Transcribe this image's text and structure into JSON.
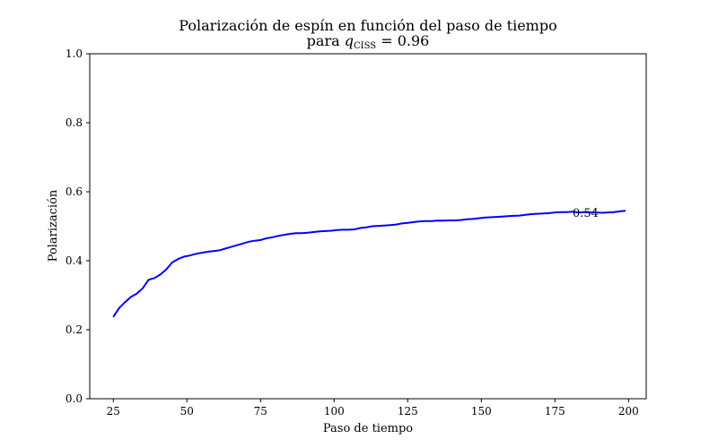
{
  "chart_data": {
    "type": "line",
    "title": "Polarización de espín en función del paso de tiempo",
    "subtitle_prefix": "para ",
    "subtitle_var": "q",
    "subtitle_sub": "CISS",
    "subtitle_suffix": " = 0.96",
    "xlabel": "Paso de tiempo",
    "ylabel": "Polarización",
    "xlim": [
      17,
      206
    ],
    "ylim": [
      0.0,
      1.0
    ],
    "xticks": [
      25,
      50,
      75,
      100,
      125,
      150,
      175,
      200
    ],
    "yticks": [
      0.0,
      0.2,
      0.4,
      0.6,
      0.8,
      1.0
    ],
    "ytick_labels": [
      "0.0",
      "0.2",
      "0.4",
      "0.6",
      "0.8",
      "1.0"
    ],
    "grid": false,
    "legend": "none",
    "annotation": {
      "text": "0.54",
      "x": 181,
      "y": 0.54
    },
    "series": [
      {
        "color": "#0000ff",
        "x": [
          25,
          27,
          29,
          31,
          33,
          35,
          37,
          39,
          41,
          43,
          45,
          47,
          49,
          51,
          53,
          55,
          57,
          59,
          61,
          63,
          65,
          67,
          69,
          71,
          73,
          75,
          77,
          79,
          81,
          83,
          85,
          87,
          89,
          91,
          93,
          95,
          97,
          99,
          101,
          103,
          105,
          107,
          109,
          111,
          113,
          115,
          117,
          119,
          121,
          123,
          125,
          127,
          129,
          131,
          133,
          135,
          137,
          139,
          141,
          143,
          145,
          147,
          149,
          151,
          153,
          155,
          157,
          159,
          161,
          163,
          165,
          167,
          169,
          171,
          173,
          175,
          177,
          179,
          181,
          183,
          185,
          187,
          189,
          191,
          193,
          195,
          197,
          199
        ],
        "y": [
          0.237,
          0.263,
          0.28,
          0.295,
          0.305,
          0.32,
          0.345,
          0.35,
          0.36,
          0.375,
          0.395,
          0.405,
          0.412,
          0.415,
          0.42,
          0.423,
          0.426,
          0.428,
          0.43,
          0.435,
          0.44,
          0.445,
          0.45,
          0.455,
          0.458,
          0.46,
          0.465,
          0.468,
          0.472,
          0.475,
          0.478,
          0.48,
          0.48,
          0.481,
          0.483,
          0.485,
          0.486,
          0.487,
          0.489,
          0.49,
          0.49,
          0.491,
          0.495,
          0.497,
          0.5,
          0.501,
          0.502,
          0.503,
          0.505,
          0.508,
          0.51,
          0.512,
          0.514,
          0.515,
          0.515,
          0.516,
          0.516,
          0.517,
          0.517,
          0.518,
          0.52,
          0.521,
          0.523,
          0.525,
          0.526,
          0.527,
          0.528,
          0.529,
          0.53,
          0.531,
          0.533,
          0.535,
          0.536,
          0.537,
          0.538,
          0.54,
          0.541,
          0.541,
          0.542,
          0.54,
          0.541,
          0.54,
          0.54,
          0.539,
          0.54,
          0.541,
          0.543,
          0.545
        ]
      }
    ]
  }
}
